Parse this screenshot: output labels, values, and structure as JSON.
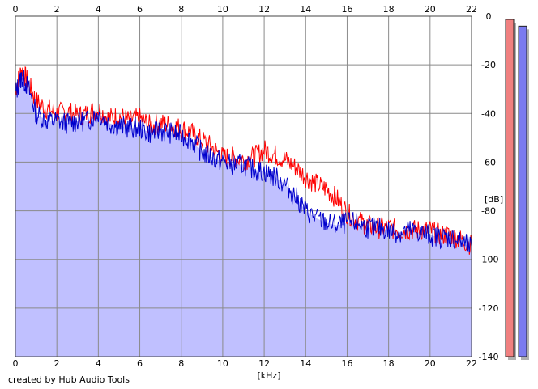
{
  "credit": "created by Hub Audio Tools",
  "chart_data": {
    "type": "area",
    "xlabel": "[kHz]",
    "ylabel": "[dB]",
    "xlim": [
      0,
      22
    ],
    "ylim": [
      -140,
      0
    ],
    "xticks": [
      "0",
      "2",
      "4",
      "6",
      "8",
      "10",
      "12",
      "14",
      "16",
      "18",
      "20",
      "22"
    ],
    "yticks": [
      "0",
      "-20",
      "-40",
      "-60",
      "-80",
      "-100",
      "-120",
      "-140"
    ],
    "grid": true,
    "series": [
      {
        "color": "#ff0000",
        "x": [
          0,
          0.3,
          0.6,
          1,
          1.5,
          2,
          2.5,
          3,
          3.5,
          4,
          4.5,
          5,
          5.5,
          6,
          6.5,
          7,
          7.5,
          8,
          8.5,
          9,
          9.5,
          10,
          10.5,
          11,
          11.5,
          12,
          12.5,
          13,
          13.5,
          14,
          14.5,
          15,
          15.5,
          16,
          16.5,
          17,
          17.5,
          18,
          18.5,
          19,
          19.5,
          20,
          20.5,
          21,
          21.5,
          22
        ],
        "values": [
          -30,
          -22,
          -27,
          -35,
          -38,
          -40,
          -39,
          -41,
          -40,
          -38,
          -42,
          -41,
          -43,
          -42,
          -45,
          -44,
          -45,
          -46,
          -48,
          -51,
          -54,
          -58,
          -58,
          -59,
          -58,
          -55,
          -57,
          -59,
          -62,
          -66,
          -69,
          -71,
          -75,
          -81,
          -84,
          -86,
          -87,
          -87,
          -88,
          -88,
          -88,
          -88,
          -90,
          -90,
          -92,
          -94
        ]
      },
      {
        "color": "#0000cc",
        "x": [
          0,
          0.3,
          0.6,
          1,
          1.5,
          2,
          2.5,
          3,
          3.5,
          4,
          4.5,
          5,
          5.5,
          6,
          6.5,
          7,
          7.5,
          8,
          8.5,
          9,
          9.5,
          10,
          10.5,
          11,
          11.5,
          12,
          12.5,
          13,
          13.5,
          14,
          14.5,
          15,
          15.5,
          16,
          16.5,
          17,
          17.5,
          18,
          18.5,
          19,
          19.5,
          20,
          20.5,
          21,
          21.5,
          22
        ],
        "values": [
          -32,
          -25,
          -29,
          -40,
          -43,
          -43,
          -44,
          -43,
          -43,
          -40,
          -44,
          -45,
          -46,
          -46,
          -48,
          -47,
          -48,
          -49,
          -51,
          -56,
          -58,
          -60,
          -61,
          -61,
          -63,
          -64,
          -66,
          -69,
          -74,
          -80,
          -83,
          -85,
          -86,
          -85,
          -85,
          -87,
          -87,
          -88,
          -89,
          -88,
          -89,
          -90,
          -91,
          -91,
          -93,
          -95
        ]
      }
    ]
  },
  "meters": [
    {
      "color": "#f08080",
      "level": 1.0
    },
    {
      "color": "#7b7bf0",
      "level": 0.98
    }
  ]
}
